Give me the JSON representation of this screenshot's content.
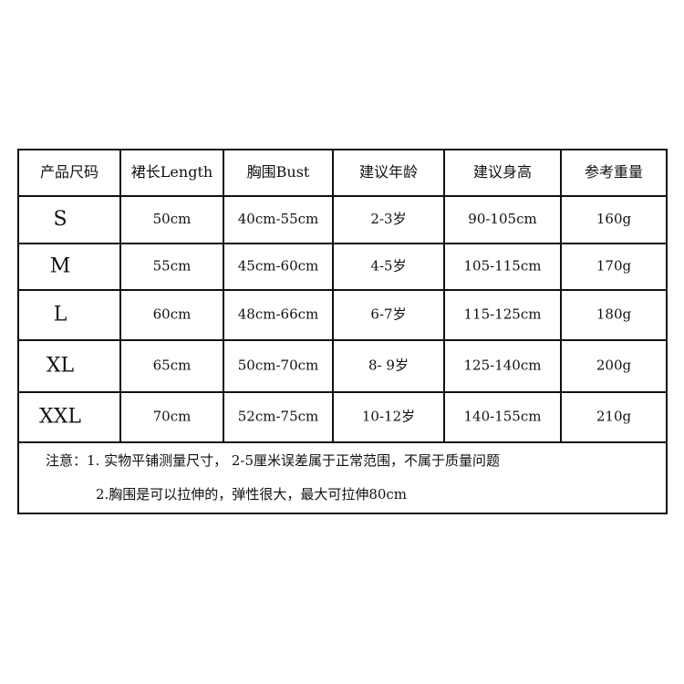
{
  "table": {
    "header": [
      "产品尺码",
      "裙长Length",
      "胸围Bust",
      "建议年龄",
      "建议身高",
      "参考重量"
    ],
    "rows": [
      [
        "S",
        "50cm",
        "40cm-55cm",
        "2-3岁",
        "90-105cm",
        "160g"
      ],
      [
        "M",
        "55cm",
        "45cm-60cm",
        "4-5岁",
        "105-115cm",
        "170g"
      ],
      [
        "L",
        "60cm",
        "48cm-66cm",
        "6-7岁",
        "115-125cm",
        "180g"
      ],
      [
        "XL",
        "65cm",
        "50cm-70cm",
        "8- 9岁",
        "125-140cm",
        "200g"
      ],
      [
        "XXL",
        "70cm",
        "52cm-75cm",
        "10-12岁",
        "140-155cm",
        "210g"
      ]
    ],
    "notes": [
      "注意：1. 实物平铺测量尺寸，  2-5厘米误差属于正常范围，不属于质量问题",
      "2.胸围是可以拉伸的，弹性很大，最大可拉伸80cm"
    ]
  }
}
